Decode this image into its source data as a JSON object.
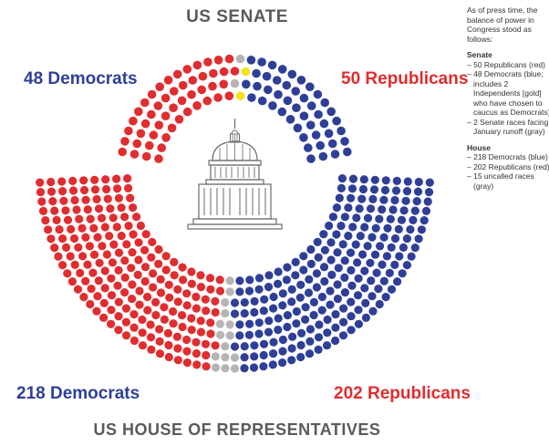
{
  "colors": {
    "democrat": "#2f3f98",
    "republican": "#e02d2f",
    "independent": "#f2e21a",
    "uncalled": "#b5b5b5",
    "capitol": "#6a6a6a"
  },
  "icons": {
    "capitol": "capitol-building-icon"
  },
  "chart_data": [
    {
      "type": "parliament",
      "title": "US SENATE",
      "categories": [
        "Democrats",
        "Independents",
        "Uncalled",
        "Republicans"
      ],
      "values": [
        46,
        2,
        2,
        50
      ],
      "labels": {
        "left": "48 Democrats",
        "right": "50 Republicans"
      }
    },
    {
      "type": "parliament",
      "title": "US HOUSE OF REPRESENTATIVES",
      "categories": [
        "Democrats",
        "Uncalled",
        "Republicans"
      ],
      "values": [
        218,
        15,
        202
      ],
      "labels": {
        "left": "218 Democrats",
        "right": "202 Republicans"
      }
    }
  ],
  "notes": {
    "intro": "As of press time, the balance of power in Congress stood as follows:",
    "senate_head": "Senate",
    "senate_items": [
      "– 50 Republicans (red)",
      "– 48 Democrats (blue; includes 2 Independents [gold] who have chosen to caucus as Democrats)",
      "– 2 Senate races facing January runoff (gray)"
    ],
    "house_head": "House",
    "house_items": [
      "– 218 Democrats (blue)",
      "– 202 Republicans (red)",
      "– 15 uncalled races (gray)"
    ]
  }
}
